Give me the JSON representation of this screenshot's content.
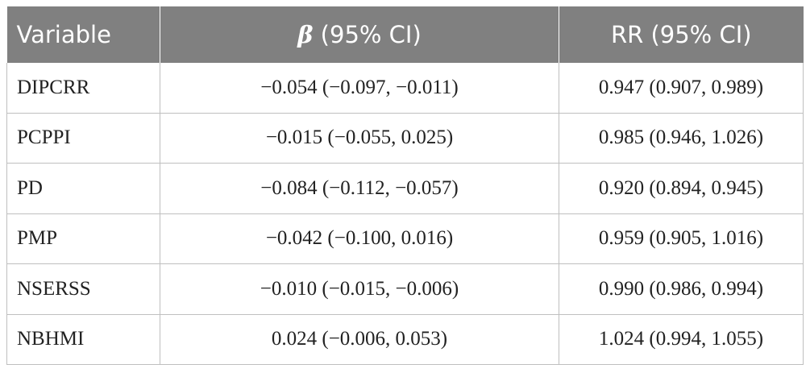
{
  "table": {
    "headers": {
      "variable": "Variable",
      "beta_symbol": "β",
      "beta_rest": " (95% CI)",
      "rr": "RR (95% CI)"
    },
    "rows": [
      {
        "variable": "DIPCRR",
        "beta": "−0.054 (−0.097, −0.011)",
        "rr": "0.947 (0.907, 0.989)"
      },
      {
        "variable": "PCPPI",
        "beta": "−0.015 (−0.055, 0.025)",
        "rr": "0.985 (0.946, 1.026)"
      },
      {
        "variable": "PD",
        "beta": "−0.084 (−0.112, −0.057)",
        "rr": "0.920 (0.894, 0.945)"
      },
      {
        "variable": "PMP",
        "beta": "−0.042 (−0.100, 0.016)",
        "rr": "0.959 (0.905, 1.016)"
      },
      {
        "variable": "NSERSS",
        "beta": "−0.010 (−0.015, −0.006)",
        "rr": "0.990 (0.986, 0.994)"
      },
      {
        "variable": "NBHMI",
        "beta": "0.024 (−0.006, 0.053)",
        "rr": "1.024 (0.994, 1.055)"
      }
    ]
  }
}
